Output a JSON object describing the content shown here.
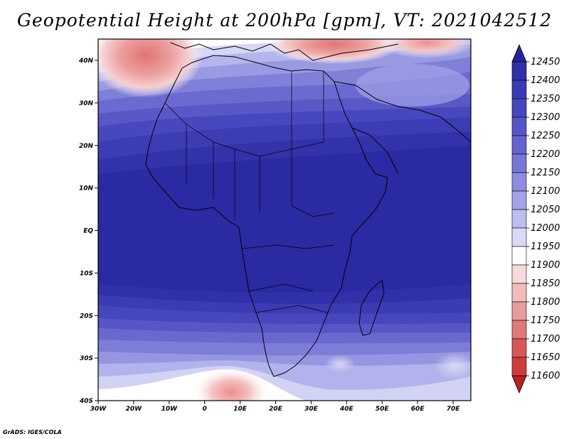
{
  "title": "Geopotential Height at 200hPa [gpm], VT: 2021042512",
  "credit": "GrADS: IGES/COLA",
  "map": {
    "lon_range": [
      -30,
      75
    ],
    "lat_range": [
      -40,
      45
    ],
    "x_ticks": [
      "30W",
      "20W",
      "10W",
      "0",
      "10E",
      "20E",
      "30E",
      "40E",
      "50E",
      "60E",
      "70E"
    ],
    "y_ticks": [
      "40N",
      "30N",
      "20N",
      "10N",
      "EQ",
      "10S",
      "20S",
      "30S",
      "40S"
    ]
  },
  "colorbar": {
    "labels": [
      "12450",
      "12400",
      "12350",
      "12300",
      "12250",
      "12200",
      "12150",
      "12100",
      "12050",
      "12000",
      "11950",
      "11900",
      "11850",
      "11800",
      "11750",
      "11700",
      "11650",
      "11600"
    ],
    "colors": [
      "#24249a",
      "#2f2fa8",
      "#3a3ab4",
      "#4646bf",
      "#5555c8",
      "#6464d0",
      "#7777d8",
      "#8c8ce0",
      "#a3a3e8",
      "#bdbdf0",
      "#dadaf7",
      "#ffffff",
      "#f7dada",
      "#f0bcbc",
      "#e89c9c",
      "#e07a7a",
      "#d85858",
      "#d03c3c",
      "#b82020"
    ]
  }
}
